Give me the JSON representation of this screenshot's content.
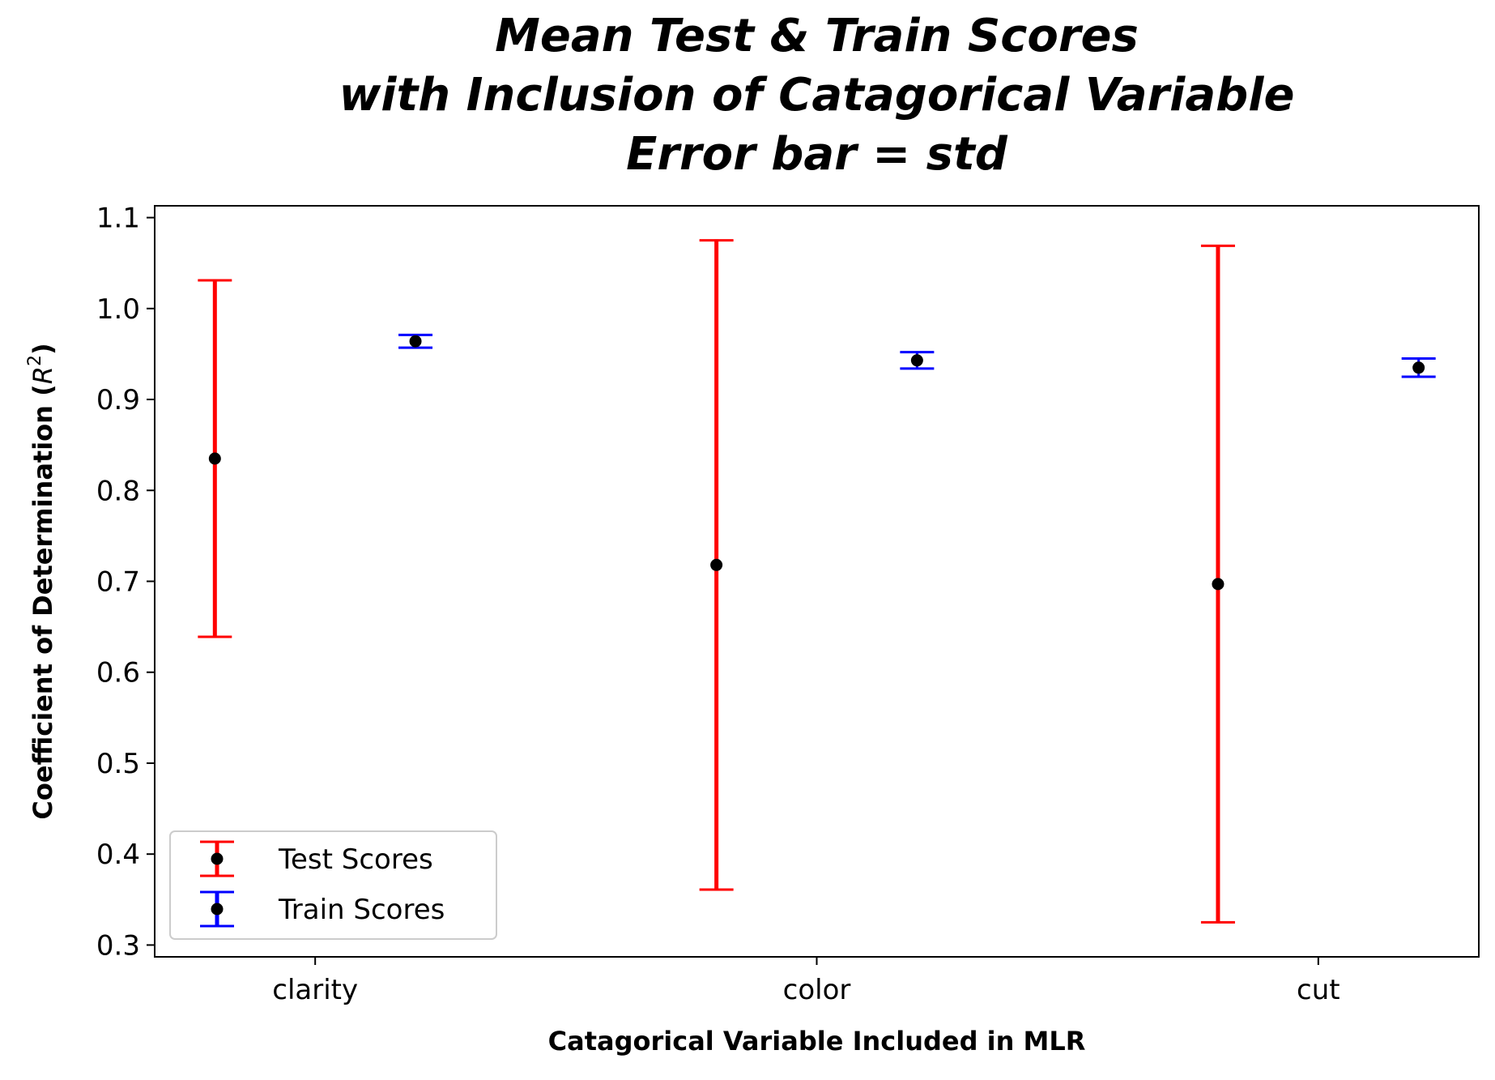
{
  "chart_data": {
    "type": "scatter",
    "title_lines": [
      "Mean Test & Train Scores",
      "with Inclusion of Catagorical Variable",
      "Error bar = std"
    ],
    "xlabel": "Catagorical Variable Included in MLR",
    "ylabel_prefix": "Coefficient of Determination (",
    "ylabel_var": "R",
    "ylabel_exp": "2",
    "ylabel_suffix": ")",
    "categories": [
      "clarity",
      "color",
      "cut"
    ],
    "ylim": [
      0.287,
      1.113
    ],
    "yticks": [
      0.3,
      0.4,
      0.5,
      0.6,
      0.7,
      0.8,
      0.9,
      1.0,
      1.1
    ],
    "ytick_labels": [
      "0.3",
      "0.4",
      "0.5",
      "0.6",
      "0.7",
      "0.8",
      "0.9",
      "1.0",
      "1.1"
    ],
    "grid": false,
    "legend_position": "lower-left",
    "series": [
      {
        "name": "Test Scores",
        "color": "#ff0000",
        "marker_color": "#000000",
        "offset": -0.2,
        "values": [
          0.835,
          0.718,
          0.697
        ],
        "errors": [
          0.196,
          0.357,
          0.372
        ]
      },
      {
        "name": "Train Scores",
        "color": "#0000ff",
        "marker_color": "#000000",
        "offset": 0.2,
        "values": [
          0.964,
          0.943,
          0.935
        ],
        "errors": [
          0.007,
          0.009,
          0.01
        ]
      }
    ]
  }
}
